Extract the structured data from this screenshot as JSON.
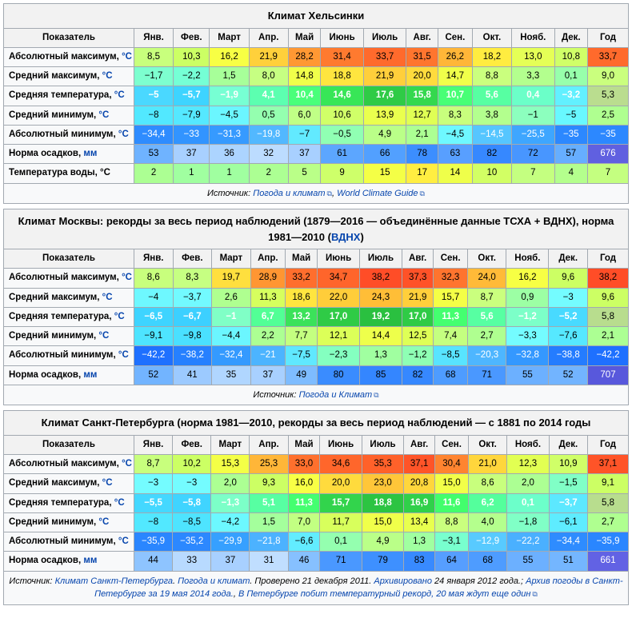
{
  "months": [
    "Янв.",
    "Фев.",
    "Март",
    "Апр.",
    "Май",
    "Июнь",
    "Июль",
    "Авг.",
    "Сен.",
    "Окт.",
    "Нояб.",
    "Дек.",
    "Год"
  ],
  "header_label": "Показатель",
  "row_labels": {
    "abs_max": "Абсолютный максимум, ",
    "avg_max": "Средний максимум, ",
    "avg_temp": "Средняя температура, ",
    "avg_min": "Средний минимум, ",
    "abs_min": "Абсолютный минимум, ",
    "precip": "Норма осадков, ",
    "water": "Температура воды, °C"
  },
  "unit_c": "°C",
  "unit_mm": "мм",
  "source_label": "Источник: ",
  "tables": [
    {
      "title": "Климат Хельсинки",
      "source_links": [
        {
          "text": "Погода и климат",
          "ext": true
        },
        {
          "text": "World Climate Guide",
          "ext": true
        }
      ],
      "rows": [
        {
          "key": "abs_max",
          "unit": "c",
          "vals": [
            "8,5",
            "10,3",
            "16,2",
            "21,9",
            "28,2",
            "31,4",
            "33,7",
            "31,5",
            "26,2",
            "18,2",
            "13,0",
            "10,8",
            "33,7"
          ],
          "bg": [
            "#c8ff7d",
            "#ccff64",
            "#f7ff44",
            "#ffd03b",
            "#ff9833",
            "#ff7a2f",
            "#ff6a2c",
            "#ff752e",
            "#ffb638",
            "#ffec40",
            "#e5ff56",
            "#d0ff68",
            "#ff6a2c"
          ]
        },
        {
          "key": "avg_max",
          "unit": "c",
          "vals": [
            "−1,7",
            "−2,2",
            "1,5",
            "8,0",
            "14,8",
            "18,8",
            "21,9",
            "20,0",
            "14,7",
            "8,8",
            "3,3",
            "0,1",
            "9,0"
          ],
          "bg": [
            "#7dffcf",
            "#75ffd5",
            "#a7ff99",
            "#c6ff82",
            "#f0ff4a",
            "#ffe53f",
            "#ffcf3b",
            "#ffdb3d",
            "#f0ff4a",
            "#caff7e",
            "#b3ff8e",
            "#97ffab",
            "#caff7e"
          ]
        },
        {
          "key": "avg_temp",
          "unit": "c",
          "vals": [
            "−5",
            "−5,7",
            "−1,9",
            "4,1",
            "10,4",
            "14,6",
            "17,6",
            "15,8",
            "10,7",
            "5,6",
            "0,4",
            "−3,2",
            "5,3"
          ],
          "bg": [
            "#4ad8ff",
            "#3ed4ff",
            "#77ffd3",
            "#5cffb0",
            "#4aff7a",
            "#38e657",
            "#2fcb46",
            "#34d84e",
            "#48ff76",
            "#57ffa2",
            "#6bffc8",
            "#62f0ff",
            "#badd8f"
          ],
          "fc": [
            "#fff",
            "#fff",
            "#fff",
            "#fff",
            "#fff",
            "#fff",
            "#fff",
            "#fff",
            "#fff",
            "#fff",
            "#fff",
            "#fff",
            "#000"
          ],
          "bold": true,
          "yearFc": "#000",
          "yearBold": false
        },
        {
          "key": "avg_min",
          "unit": "c",
          "vals": [
            "−8",
            "−7,9",
            "−4,5",
            "0,5",
            "6,0",
            "10,6",
            "13,9",
            "12,7",
            "8,3",
            "3,8",
            "−1",
            "−5",
            "2,5"
          ],
          "bg": [
            "#52e8ff",
            "#55e8ff",
            "#6bf6ff",
            "#94ffaf",
            "#c0ff86",
            "#d0ff68",
            "#eaff4e",
            "#e0ff54",
            "#c8ff7d",
            "#b3ff8e",
            "#8cffbe",
            "#68f8ff",
            "#afff90"
          ]
        },
        {
          "key": "abs_min",
          "unit": "c",
          "vals": [
            "−34,4",
            "−33",
            "−31,3",
            "−19,8",
            "−7",
            "−0,5",
            "4,9",
            "2,1",
            "−4,5",
            "−14,5",
            "−25,5",
            "−35",
            "−35"
          ],
          "bg": [
            "#2e8cff",
            "#3294ff",
            "#369aff",
            "#52b8ff",
            "#62eaff",
            "#90ffb3",
            "#baff88",
            "#acff93",
            "#6ef8ff",
            "#56c6ff",
            "#3ea6ff",
            "#2c88ff",
            "#2c88ff"
          ],
          "fc": [
            "#fff",
            "#fff",
            "#fff",
            "#fff",
            "#000",
            "#000",
            "#000",
            "#000",
            "#000",
            "#fff",
            "#fff",
            "#fff",
            "#fff"
          ]
        },
        {
          "key": "precip",
          "unit": "mm",
          "vals": [
            "53",
            "37",
            "36",
            "32",
            "37",
            "61",
            "66",
            "78",
            "63",
            "82",
            "72",
            "57",
            "676"
          ],
          "bg": [
            "#6fb3ff",
            "#a8d0ff",
            "#acd4ff",
            "#bcdcff",
            "#a8d0ff",
            "#5ca6ff",
            "#52a0ff",
            "#3c8eff",
            "#589fff",
            "#3688ff",
            "#4896ff",
            "#66aeff",
            "#6060e0"
          ],
          "fc": [
            "#000",
            "#000",
            "#000",
            "#000",
            "#000",
            "#000",
            "#000",
            "#000",
            "#000",
            "#000",
            "#000",
            "#000",
            "#fff"
          ]
        },
        {
          "key": "water",
          "unit": "",
          "vals": [
            "2",
            "1",
            "1",
            "2",
            "5",
            "9",
            "15",
            "17",
            "14",
            "10",
            "7",
            "4",
            "7"
          ],
          "bg": [
            "#acff93",
            "#a0ffa0",
            "#a0ffa0",
            "#acff93",
            "#baff88",
            "#ceff6a",
            "#f4ff46",
            "#ffee41",
            "#efff4a",
            "#d2ff64",
            "#c4ff80",
            "#b4ff8d",
            "#c4ff80"
          ]
        }
      ]
    },
    {
      "title": "Климат Москвы: рекорды за весь период наблюдений (1879—2016 — объединённые данные ТСХА + ВДНХ), норма 1981—2010 (",
      "title_link": "ВДНХ",
      "title_after": ")",
      "source_links": [
        {
          "text": "Погода и Климат",
          "ext": true
        }
      ],
      "rows": [
        {
          "key": "abs_max",
          "unit": "c",
          "vals": [
            "8,6",
            "8,3",
            "19,7",
            "28,9",
            "33,2",
            "34,7",
            "38,2",
            "37,3",
            "32,3",
            "24,0",
            "16,2",
            "9,6",
            "38,2"
          ],
          "bg": [
            "#c8ff7d",
            "#c6ff82",
            "#ffdf3e",
            "#ff9632",
            "#ff6e2d",
            "#ff652b",
            "#ff4d27",
            "#ff5228",
            "#ff742e",
            "#ffba38",
            "#f7ff44",
            "#ccff64",
            "#ff4d27"
          ]
        },
        {
          "key": "avg_max",
          "unit": "c",
          "vals": [
            "−4",
            "−3,7",
            "2,6",
            "11,3",
            "18,6",
            "22,0",
            "24,3",
            "21,9",
            "15,7",
            "8,7",
            "0,9",
            "−3",
            "9,6"
          ],
          "bg": [
            "#6ef8ff",
            "#72faff",
            "#afff90",
            "#d6ff5e",
            "#ffe53f",
            "#ffcd3a",
            "#ffbe37",
            "#ffcf3b",
            "#f4ff46",
            "#caff7e",
            "#9cffa4",
            "#74fcff",
            "#ccff64"
          ]
        },
        {
          "key": "avg_temp",
          "unit": "c",
          "vals": [
            "−6,5",
            "−6,7",
            "−1",
            "6,7",
            "13,2",
            "17,0",
            "19,2",
            "17,0",
            "11,3",
            "5,6",
            "−1,2",
            "−5,2",
            "5,8"
          ],
          "bg": [
            "#3ed4ff",
            "#3cd0ff",
            "#80ffc6",
            "#52ff96",
            "#3be25a",
            "#2fcb46",
            "#2ac040",
            "#2fcb46",
            "#44ff70",
            "#57ffa2",
            "#7cffc8",
            "#48daff",
            "#b8dd8e"
          ],
          "fc": [
            "#fff",
            "#fff",
            "#fff",
            "#fff",
            "#fff",
            "#fff",
            "#fff",
            "#fff",
            "#fff",
            "#fff",
            "#fff",
            "#fff",
            "#000"
          ],
          "bold": true,
          "yearBold": false
        },
        {
          "key": "avg_min",
          "unit": "c",
          "vals": [
            "−9,1",
            "−9,8",
            "−4,4",
            "2,2",
            "7,7",
            "12,1",
            "14,4",
            "12,5",
            "7,4",
            "2,7",
            "−3,3",
            "−7,6",
            "2,1"
          ],
          "bg": [
            "#4ee4ff",
            "#4ae0ff",
            "#6bf6ff",
            "#acff93",
            "#c4ff80",
            "#dcff58",
            "#eeff4b",
            "#deff56",
            "#c4ff80",
            "#afff90",
            "#74fcff",
            "#56e8ff",
            "#acff93"
          ]
        },
        {
          "key": "abs_min",
          "unit": "c",
          "vals": [
            "−42,2",
            "−38,2",
            "−32,4",
            "−21",
            "−7,5",
            "−2,3",
            "1,3",
            "−1,2",
            "−8,5",
            "−20,3",
            "−32,8",
            "−38,8",
            "−42,2"
          ],
          "bg": [
            "#1e70ff",
            "#2680ff",
            "#349aff",
            "#4cb4ff",
            "#60e8ff",
            "#84ffc0",
            "#a0ffa0",
            "#8effb4",
            "#58e4ff",
            "#4eb6ff",
            "#3498ff",
            "#247cff",
            "#1e70ff"
          ],
          "fc": [
            "#fff",
            "#fff",
            "#fff",
            "#fff",
            "#000",
            "#000",
            "#000",
            "#000",
            "#000",
            "#fff",
            "#fff",
            "#fff",
            "#fff"
          ]
        },
        {
          "key": "precip",
          "unit": "mm",
          "vals": [
            "52",
            "41",
            "35",
            "37",
            "49",
            "80",
            "85",
            "82",
            "68",
            "71",
            "55",
            "52",
            "707"
          ],
          "bg": [
            "#72b4ff",
            "#9ccaff",
            "#b0d6ff",
            "#a8d0ff",
            "#7ebcff",
            "#3a8cff",
            "#3486ff",
            "#3688ff",
            "#4e9cff",
            "#4a98ff",
            "#6cb0ff",
            "#72b4ff",
            "#5858dc"
          ],
          "fc": [
            "#000",
            "#000",
            "#000",
            "#000",
            "#000",
            "#000",
            "#000",
            "#000",
            "#000",
            "#000",
            "#000",
            "#000",
            "#fff"
          ]
        }
      ]
    },
    {
      "title": "Климат Санкт-Петербурга (норма 1981—2010, рекорды за весь период наблюдений — с 1881 по 2014 годы",
      "source_text": "Климат Санкт-Петербурга",
      "source_links": [
        {
          "text": "Погода и климат",
          "ext": false
        }
      ],
      "source_suffix": ". Проверено 21 декабря 2011. ",
      "source_arch": "Архивировано",
      "source_suffix2": " 24 января 2012 года.; ",
      "source_link2": "Архив погоды в Санкт-Петербурге за 19 мая 2014 года.",
      "source_link3": "В Петербурге побит температурный рекорд, 20 мая ждут еще один",
      "rows": [
        {
          "key": "abs_max",
          "unit": "c",
          "vals": [
            "8,7",
            "10,2",
            "15,3",
            "25,3",
            "33,0",
            "34,6",
            "35,3",
            "37,1",
            "30,4",
            "21,0",
            "12,3",
            "10,9",
            "37,1"
          ],
          "bg": [
            "#c8ff7d",
            "#ccff64",
            "#f4ff46",
            "#ffb638",
            "#ff702d",
            "#ff662b",
            "#ff612a",
            "#ff5428",
            "#ff8430",
            "#ffd63c",
            "#e2ff52",
            "#d0ff68",
            "#ff5428"
          ]
        },
        {
          "key": "avg_max",
          "unit": "c",
          "vals": [
            "−3",
            "−3",
            "2,0",
            "9,3",
            "16,0",
            "20,0",
            "23,0",
            "20,8",
            "15,0",
            "8,6",
            "2,0",
            "−1,5",
            "9,1"
          ],
          "bg": [
            "#74fcff",
            "#74fcff",
            "#acff93",
            "#ccff64",
            "#f8ff45",
            "#ffdb3d",
            "#ffc639",
            "#ffd63c",
            "#f2ff48",
            "#c8ff7d",
            "#acff93",
            "#80ffc6",
            "#ccff64"
          ]
        },
        {
          "key": "avg_temp",
          "unit": "c",
          "vals": [
            "−5,5",
            "−5,8",
            "−1,3",
            "5,1",
            "11,3",
            "15,7",
            "18,8",
            "16,9",
            "11,6",
            "6,2",
            "0,1",
            "−3,7",
            "5,8"
          ],
          "bg": [
            "#44d8ff",
            "#40d4ff",
            "#7cffc8",
            "#57ffa2",
            "#44ff70",
            "#32d44c",
            "#2cc442",
            "#30d04a",
            "#42fe6c",
            "#54ff9c",
            "#6cffca",
            "#5ce8ff",
            "#b8dd8e"
          ],
          "fc": [
            "#fff",
            "#fff",
            "#fff",
            "#fff",
            "#fff",
            "#fff",
            "#fff",
            "#fff",
            "#fff",
            "#fff",
            "#fff",
            "#fff",
            "#000"
          ],
          "bold": true,
          "yearBold": false
        },
        {
          "key": "avg_min",
          "unit": "c",
          "vals": [
            "−8",
            "−8,5",
            "−4,2",
            "1,5",
            "7,0",
            "11,7",
            "15,0",
            "13,4",
            "8,8",
            "4,0",
            "−1,8",
            "−6,1",
            "2,7"
          ],
          "bg": [
            "#52e8ff",
            "#4ee4ff",
            "#6cf8ff",
            "#a4ff9c",
            "#c2ff82",
            "#d8ff5c",
            "#f0ff4a",
            "#e8ff4e",
            "#caff7e",
            "#b4ff8d",
            "#80ffc6",
            "#5eecff",
            "#afff90"
          ]
        },
        {
          "key": "abs_min",
          "unit": "c",
          "vals": [
            "−35,9",
            "−35,2",
            "−29,9",
            "−21,8",
            "−6,6",
            "0,1",
            "4,9",
            "1,3",
            "−3,1",
            "−12,9",
            "−22,2",
            "−34,4",
            "−35,9"
          ],
          "bg": [
            "#2a86ff",
            "#2c88ff",
            "#36a0ff",
            "#4cb2ff",
            "#62ecff",
            "#94ffaf",
            "#baff88",
            "#a0ffa0",
            "#78ffce",
            "#58caff",
            "#4ab0ff",
            "#2e8cff",
            "#2a86ff"
          ],
          "fc": [
            "#fff",
            "#fff",
            "#fff",
            "#fff",
            "#000",
            "#000",
            "#000",
            "#000",
            "#000",
            "#fff",
            "#fff",
            "#fff",
            "#fff"
          ]
        },
        {
          "key": "precip",
          "unit": "mm",
          "vals": [
            "44",
            "33",
            "37",
            "31",
            "46",
            "71",
            "79",
            "83",
            "64",
            "68",
            "55",
            "51",
            "661"
          ],
          "bg": [
            "#8ec4ff",
            "#b8daff",
            "#a8d0ff",
            "#c0deff",
            "#86c0ff",
            "#4a98ff",
            "#3e90ff",
            "#388aff",
            "#569eff",
            "#4e9cff",
            "#6cb0ff",
            "#74b6ff",
            "#6262e4"
          ],
          "fc": [
            "#000",
            "#000",
            "#000",
            "#000",
            "#000",
            "#000",
            "#000",
            "#000",
            "#000",
            "#000",
            "#000",
            "#000",
            "#fff"
          ]
        }
      ]
    }
  ]
}
